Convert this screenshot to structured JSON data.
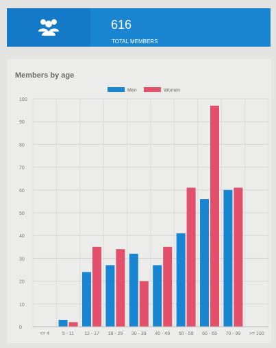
{
  "stats": {
    "total_members_value": "616",
    "total_members_label": "TOTAL MEMBERS",
    "icon": "users-icon"
  },
  "panel": {
    "title": "Members by age"
  },
  "colors": {
    "header_bg": "#1a86d2",
    "header_icon_bg": "#1479c6",
    "men": "#1a86d2",
    "women": "#e2506b"
  },
  "chart_data": {
    "type": "bar",
    "categories": [
      "<= 4",
      "5 - 11",
      "12 - 17",
      "18 - 29",
      "30 - 39",
      "40 - 49",
      "50 - 59",
      "60 - 69",
      "70 - 99",
      ">= 100"
    ],
    "series": [
      {
        "name": "Men",
        "values": [
          0,
          3,
          24,
          27,
          32,
          27,
          41,
          56,
          60,
          0
        ]
      },
      {
        "name": "Women",
        "values": [
          0,
          2,
          35,
          34,
          20,
          35,
          61,
          97,
          61,
          0
        ]
      }
    ],
    "yticks": [
      "0",
      "10",
      "20",
      "30",
      "40",
      "50",
      "60",
      "70",
      "80",
      "90",
      "100"
    ],
    "ylim": [
      0,
      100
    ],
    "grid": true,
    "legend_position": "top-center"
  }
}
